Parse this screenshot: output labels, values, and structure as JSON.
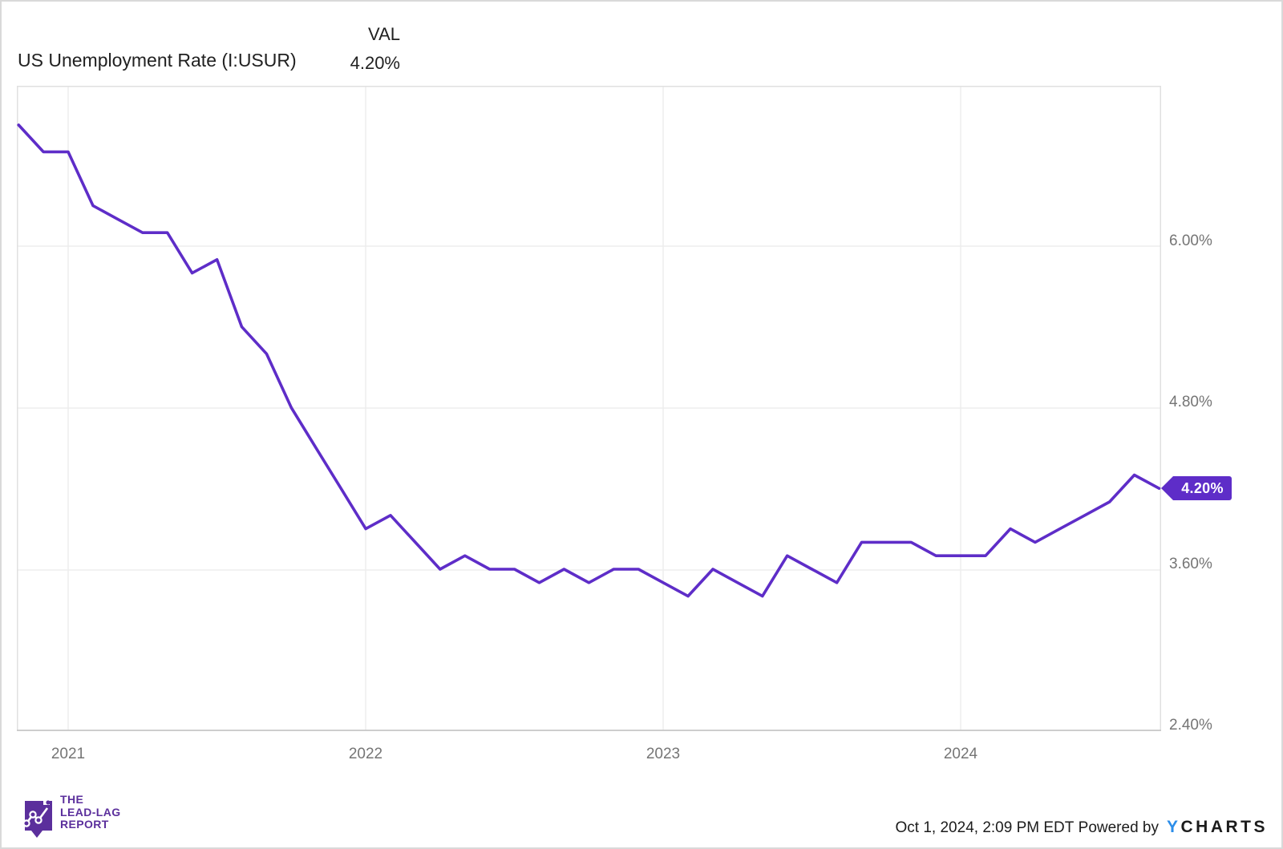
{
  "header": {
    "title": "US Unemployment Rate (I:USUR)",
    "val_label": "VAL",
    "val_value": "4.20%"
  },
  "chart_data": {
    "type": "line",
    "title": "US Unemployment Rate (I:USUR)",
    "xlabel": "",
    "ylabel": "",
    "ylim": [
      2.4,
      7.19
    ],
    "grid": true,
    "legend_position": "none",
    "x": [
      "2020-10",
      "2020-11",
      "2020-12",
      "2021-01",
      "2021-02",
      "2021-03",
      "2021-04",
      "2021-05",
      "2021-06",
      "2021-07",
      "2021-08",
      "2021-09",
      "2021-10",
      "2021-11",
      "2021-12",
      "2022-01",
      "2022-02",
      "2022-03",
      "2022-04",
      "2022-05",
      "2022-06",
      "2022-07",
      "2022-08",
      "2022-09",
      "2022-10",
      "2022-11",
      "2022-12",
      "2023-01",
      "2023-02",
      "2023-03",
      "2023-04",
      "2023-05",
      "2023-06",
      "2023-07",
      "2023-08",
      "2023-09",
      "2023-10",
      "2023-11",
      "2023-12",
      "2024-01",
      "2024-02",
      "2024-03",
      "2024-04",
      "2024-05",
      "2024-06",
      "2024-07",
      "2024-08"
    ],
    "series": [
      {
        "name": "US Unemployment Rate (I:USUR)",
        "unit": "%",
        "values": [
          6.9,
          6.7,
          6.7,
          6.3,
          6.2,
          6.1,
          6.1,
          5.8,
          5.9,
          5.4,
          5.2,
          4.8,
          4.5,
          4.2,
          3.9,
          4.0,
          3.8,
          3.6,
          3.7,
          3.6,
          3.6,
          3.5,
          3.6,
          3.5,
          3.6,
          3.6,
          3.5,
          3.4,
          3.6,
          3.5,
          3.4,
          3.7,
          3.6,
          3.5,
          3.8,
          3.8,
          3.8,
          3.7,
          3.7,
          3.7,
          3.9,
          3.8,
          3.9,
          4.0,
          4.1,
          4.3,
          4.2
        ]
      }
    ],
    "yticks": [
      {
        "label": "6.00%",
        "value": 6.0
      },
      {
        "label": "4.80%",
        "value": 4.8
      },
      {
        "label": "3.60%",
        "value": 3.6
      },
      {
        "label": "2.40%",
        "value": 2.4
      }
    ],
    "xticks": [
      {
        "label": "2021"
      },
      {
        "label": "2022"
      },
      {
        "label": "2023"
      },
      {
        "label": "2024"
      }
    ],
    "callout": {
      "label": "4.20%"
    }
  },
  "footer": {
    "brand": {
      "line1": "THE",
      "line2": "LEAD-LAG",
      "line3": "REPORT"
    },
    "attribution": {
      "timestamp": "Oct 1, 2024, 2:09 PM EDT",
      "powered_by": "Powered by",
      "ycharts_y": "Y",
      "ycharts_rest": "CHARTS"
    }
  },
  "colors": {
    "accent": "#5e2dc8",
    "brand_purple": "#5b2f9c",
    "ycharts_blue": "#2b8de9",
    "grid": "#ededed",
    "plot_border": "#e0e0e0",
    "axis_bottom": "#c9c9c9",
    "text_dark": "#212121",
    "text_gray": "#757575"
  }
}
